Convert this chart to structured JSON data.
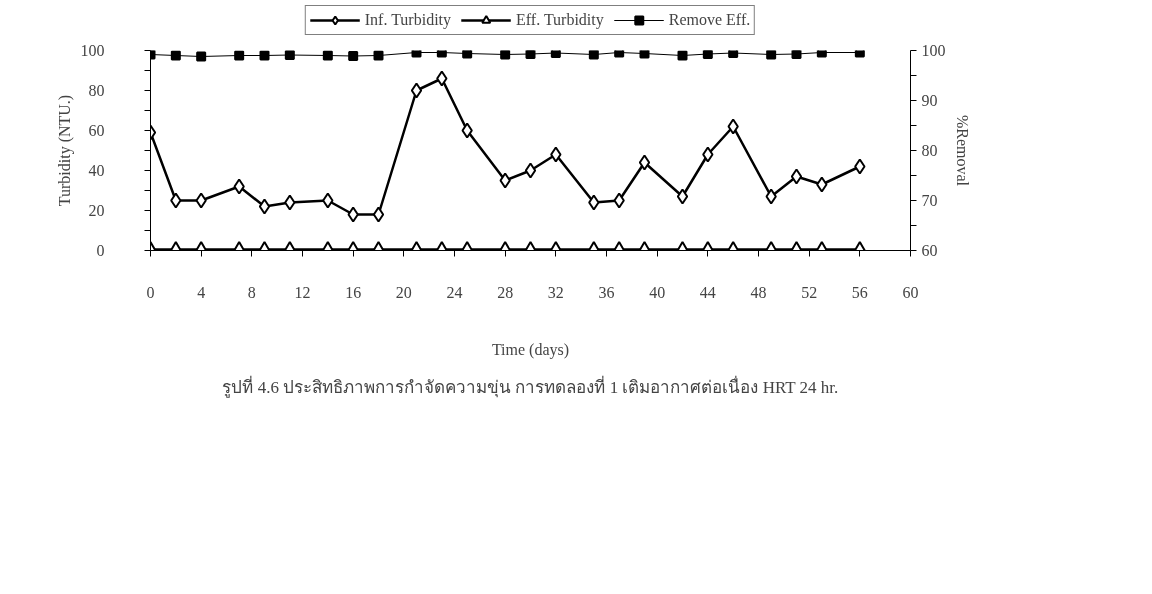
{
  "chart_data": {
    "type": "line",
    "xlabel": "Time (days)",
    "ylabel": "Turbidity (NTU.)",
    "y2label": "%Removal",
    "x": [
      0,
      2,
      4,
      7,
      9,
      11,
      14,
      16,
      18,
      21,
      23,
      25,
      28,
      30,
      32,
      35,
      37,
      39,
      42,
      44,
      46,
      49,
      51,
      53,
      56
    ],
    "series": [
      {
        "name": "Inf. Turbidity",
        "color": "#000000",
        "marker": "diamond",
        "values": [
          59,
          25,
          25,
          32,
          22,
          24,
          25,
          18,
          18,
          80,
          86,
          60,
          35,
          40,
          48,
          24,
          25,
          44,
          27,
          48,
          62,
          27,
          37,
          33,
          42
        ]
      },
      {
        "name": "Eff. Turbidity",
        "color": "#000000",
        "marker": "triangle",
        "values": [
          0.5,
          0.5,
          0.5,
          0.5,
          0.5,
          0.5,
          0.5,
          0.5,
          0.5,
          0.5,
          0.5,
          0.5,
          0.5,
          0.5,
          0.5,
          0.5,
          0.5,
          0.5,
          0.5,
          0.5,
          0.5,
          0.5,
          0.5,
          0.5,
          0.5
        ]
      },
      {
        "name": "Remove Eff.",
        "color": "#000000",
        "marker": "square",
        "axis": "y2",
        "values": [
          99.2,
          99,
          98.8,
          99,
          99,
          99.1,
          99,
          98.9,
          99,
          99.6,
          99.6,
          99.4,
          99.2,
          99.3,
          99.5,
          99.2,
          99.6,
          99.4,
          99,
          99.3,
          99.5,
          99.2,
          99.3,
          99.6,
          99.6
        ]
      }
    ],
    "xlim": [
      0,
      60
    ],
    "xticks": [
      0,
      4,
      8,
      12,
      16,
      20,
      24,
      28,
      32,
      36,
      40,
      44,
      48,
      52,
      56,
      60
    ],
    "ylim": [
      0,
      100
    ],
    "yticks": [
      0,
      {
        "value": 10,
        "label": null
      },
      20,
      {
        "value": 30,
        "label": null
      },
      40,
      {
        "value": 50,
        "label": null
      },
      60,
      {
        "value": 70,
        "label": null
      },
      80,
      {
        "value": 90,
        "label": null
      },
      100
    ],
    "y2lim": [
      60,
      100
    ],
    "y2ticks": [
      60,
      {
        "value": 65,
        "label": null
      },
      70,
      {
        "value": 75,
        "label": null
      },
      80,
      {
        "value": 85,
        "label": null
      },
      90,
      {
        "value": 95,
        "label": null
      },
      100
    ],
    "legend": "top",
    "grid": false,
    "annotations": [
      "รูปที่ 4.6 ประสิทธิภาพการกำจัดความขุ่น การทดลองที่ 1 เติมอากาศต่อเนื่อง HRT 24 hr."
    ]
  }
}
